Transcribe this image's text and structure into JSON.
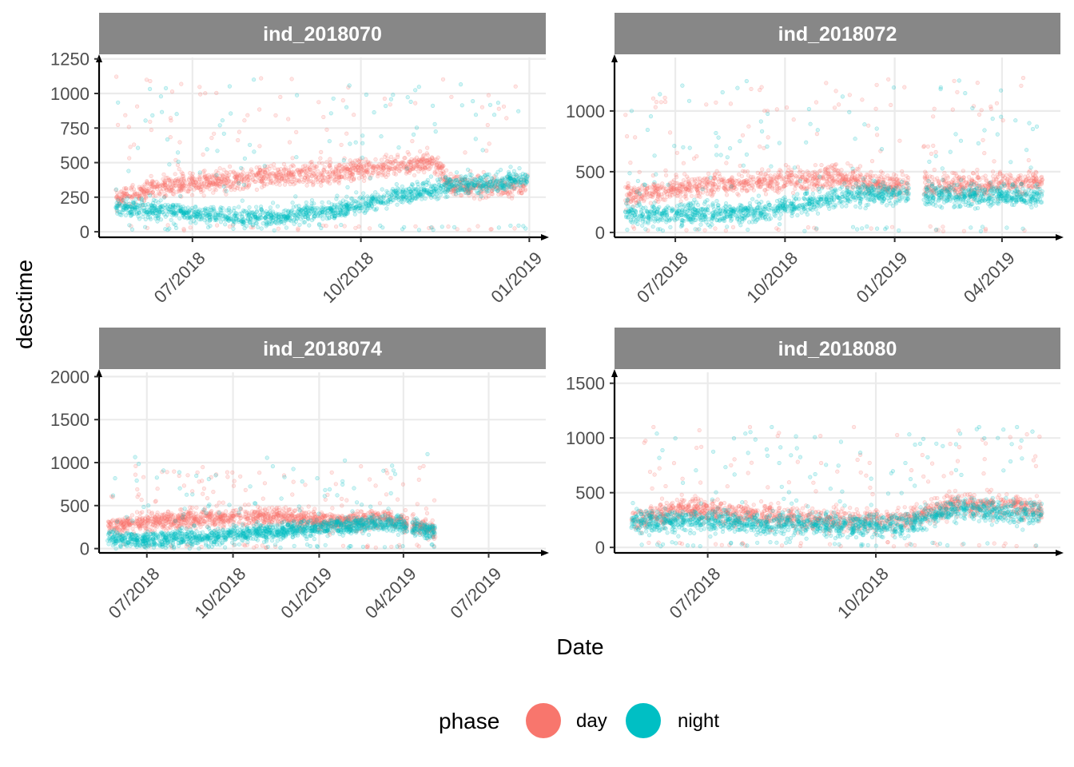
{
  "chart_data": {
    "type": "scatter",
    "facet_layout": "2x2",
    "xlabel": "Date",
    "ylabel": "desctime",
    "legend": {
      "title": "phase",
      "placement": "bottom",
      "entries": [
        {
          "label": "day",
          "color": "#F8766D"
        },
        {
          "label": "night",
          "color": "#00BFC4"
        }
      ]
    },
    "colors": {
      "day": "#F8766D",
      "night": "#00BFC4",
      "strip_bg": "#878787",
      "strip_text": "#ffffff",
      "grid": "#ebebeb",
      "axis": "#000000"
    },
    "grid": true,
    "panels": [
      {
        "strip": "ind_2018070",
        "xlim": [
          "2018-05-11",
          "2019-01-10"
        ],
        "ylim": [
          -40,
          1260
        ],
        "x_ticks": [
          {
            "date": "2018-07-01",
            "label": "07/2018"
          },
          {
            "date": "2018-10-01",
            "label": "10/2018"
          },
          {
            "date": "2019-01-01",
            "label": "01/2019"
          }
        ],
        "y_ticks": [
          {
            "value": 0,
            "label": "0"
          },
          {
            "value": 250,
            "label": "250"
          },
          {
            "value": 500,
            "label": "500"
          },
          {
            "value": 750,
            "label": "750"
          },
          {
            "value": 1000,
            "label": "1000"
          },
          {
            "value": 1250,
            "label": "1250"
          }
        ],
        "data_range": [
          "2018-05-20",
          "2018-12-31"
        ],
        "series": [
          {
            "name": "day",
            "trend": [
              [
                "2018-05-20",
                230
              ],
              [
                "2018-06-15",
                330
              ],
              [
                "2018-08-01",
                390
              ],
              [
                "2018-09-15",
                420
              ],
              [
                "2018-10-20",
                480
              ],
              [
                "2018-11-10",
                500
              ],
              [
                "2018-11-20",
                330
              ],
              [
                "2018-12-31",
                330
              ]
            ],
            "spread": 110,
            "outlier_max": 1200
          },
          {
            "name": "night",
            "trend": [
              [
                "2018-05-20",
                180
              ],
              [
                "2018-06-15",
                150
              ],
              [
                "2018-08-01",
                100
              ],
              [
                "2018-09-15",
                150
              ],
              [
                "2018-10-20",
                260
              ],
              [
                "2018-11-20",
                330
              ],
              [
                "2018-12-31",
                380
              ]
            ],
            "spread": 90,
            "outlier_max": 1100
          }
        ]
      },
      {
        "strip": "ind_2018072",
        "xlim": [
          "2018-05-11",
          "2019-05-20"
        ],
        "ylim": [
          -40,
          1440
        ],
        "x_ticks": [
          {
            "date": "2018-07-01",
            "label": "07/2018"
          },
          {
            "date": "2018-10-01",
            "label": "10/2018"
          },
          {
            "date": "2019-01-01",
            "label": "01/2019"
          },
          {
            "date": "2019-04-01",
            "label": "04/2019"
          }
        ],
        "y_ticks": [
          {
            "value": 0,
            "label": "0"
          },
          {
            "value": 500,
            "label": "500"
          },
          {
            "value": 1000,
            "label": "1000"
          }
        ],
        "data_range": [
          "2018-05-20",
          "2019-05-05"
        ],
        "gaps": [
          [
            "2019-01-13",
            "2019-01-25"
          ]
        ],
        "series": [
          {
            "name": "day",
            "trend": [
              [
                "2018-05-20",
                300
              ],
              [
                "2018-07-15",
                380
              ],
              [
                "2018-09-15",
                420
              ],
              [
                "2018-11-15",
                450
              ],
              [
                "2019-01-10",
                380
              ],
              [
                "2019-02-15",
                380
              ],
              [
                "2019-05-05",
                420
              ]
            ],
            "spread": 130,
            "outlier_max": 1290
          },
          {
            "name": "night",
            "trend": [
              [
                "2018-05-20",
                160
              ],
              [
                "2018-07-15",
                150
              ],
              [
                "2018-09-15",
                170
              ],
              [
                "2018-11-15",
                300
              ],
              [
                "2019-01-10",
                320
              ],
              [
                "2019-02-15",
                310
              ],
              [
                "2019-05-05",
                300
              ]
            ],
            "spread": 120,
            "outlier_max": 1250
          }
        ]
      },
      {
        "strip": "ind_2018074",
        "xlim": [
          "2018-05-11",
          "2019-08-31"
        ],
        "ylim": [
          -50,
          2050
        ],
        "x_ticks": [
          {
            "date": "2018-07-01",
            "label": "07/2018"
          },
          {
            "date": "2018-10-01",
            "label": "10/2018"
          },
          {
            "date": "2019-01-01",
            "label": "01/2019"
          },
          {
            "date": "2019-04-01",
            "label": "04/2019"
          },
          {
            "date": "2019-07-01",
            "label": "07/2019"
          }
        ],
        "y_ticks": [
          {
            "value": 0,
            "label": "0"
          },
          {
            "value": 500,
            "label": "500"
          },
          {
            "value": 1000,
            "label": "1000"
          },
          {
            "value": 1500,
            "label": "1500"
          },
          {
            "value": 2000,
            "label": "2000"
          }
        ],
        "data_range": [
          "2018-05-20",
          "2019-05-05"
        ],
        "gaps": [
          [
            "2019-04-05",
            "2019-04-10"
          ]
        ],
        "series": [
          {
            "name": "day",
            "trend": [
              [
                "2018-05-20",
                250
              ],
              [
                "2018-07-15",
                330
              ],
              [
                "2018-09-15",
                350
              ],
              [
                "2018-11-15",
                370
              ],
              [
                "2019-01-15",
                300
              ],
              [
                "2019-03-15",
                350
              ],
              [
                "2019-05-05",
                200
              ]
            ],
            "spread": 150,
            "outlier_max": 960
          },
          {
            "name": "night",
            "trend": [
              [
                "2018-05-20",
                120
              ],
              [
                "2018-07-15",
                100
              ],
              [
                "2018-09-15",
                150
              ],
              [
                "2018-11-15",
                200
              ],
              [
                "2019-01-15",
                250
              ],
              [
                "2019-03-15",
                300
              ],
              [
                "2019-05-05",
                200
              ]
            ],
            "spread": 130,
            "outlier_max": 1100
          }
        ]
      },
      {
        "strip": "ind_2018080",
        "xlim": [
          "2018-05-11",
          "2019-01-10"
        ],
        "ylim": [
          -50,
          1600
        ],
        "x_ticks": [
          {
            "date": "2018-07-01",
            "label": "07/2018"
          },
          {
            "date": "2018-10-01",
            "label": "10/2018"
          }
        ],
        "y_ticks": [
          {
            "value": 0,
            "label": "0"
          },
          {
            "value": 500,
            "label": "500"
          },
          {
            "value": 1000,
            "label": "1000"
          },
          {
            "value": 1500,
            "label": "1500"
          }
        ],
        "data_range": [
          "2018-05-20",
          "2018-12-31"
        ],
        "series": [
          {
            "name": "day",
            "trend": [
              [
                "2018-05-20",
                250
              ],
              [
                "2018-06-20",
                350
              ],
              [
                "2018-07-20",
                300
              ],
              [
                "2018-09-01",
                250
              ],
              [
                "2018-10-15",
                250
              ],
              [
                "2018-11-15",
                400
              ],
              [
                "2018-12-31",
                350
              ]
            ],
            "spread": 140,
            "outlier_max": 1100
          },
          {
            "name": "night",
            "trend": [
              [
                "2018-05-20",
                230
              ],
              [
                "2018-06-20",
                250
              ],
              [
                "2018-07-20",
                220
              ],
              [
                "2018-09-01",
                200
              ],
              [
                "2018-10-15",
                200
              ],
              [
                "2018-11-15",
                350
              ],
              [
                "2018-12-31",
                300
              ]
            ],
            "spread": 140,
            "outlier_max": 1100
          }
        ]
      }
    ]
  }
}
